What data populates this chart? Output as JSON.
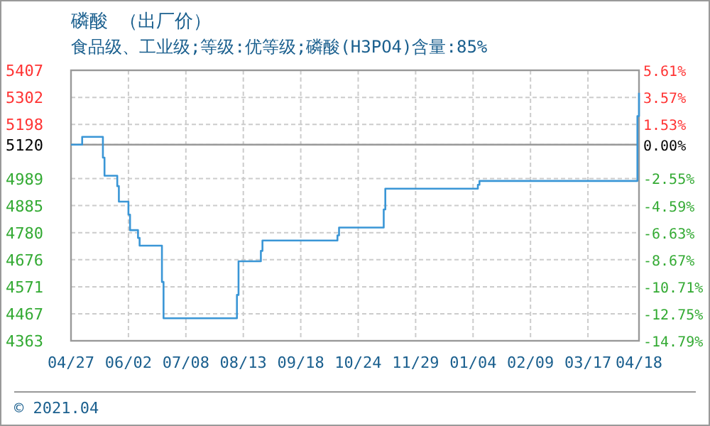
{
  "chart_data": {
    "type": "step",
    "title": "磷酸 （出厂价）",
    "subtitle": "食品级、工业级;等级:优等级;磷酸(H3PO4)含量:85%",
    "annotations": [
      "© 2021.04"
    ],
    "x": [
      "2020-04-27",
      "2020-05-04",
      "2020-05-17",
      "2020-05-18",
      "2020-05-26",
      "2020-05-27",
      "2020-06-02",
      "2020-06-03",
      "2020-06-08",
      "2020-06-09",
      "2020-06-23",
      "2020-06-24",
      "2020-08-09",
      "2020-08-10",
      "2020-08-24",
      "2020-08-25",
      "2020-10-11",
      "2020-10-12",
      "2020-11-09",
      "2020-11-10",
      "2021-01-07",
      "2021-01-08",
      "2021-04-16",
      "2021-04-17",
      "2021-04-18"
    ],
    "series": [
      {
        "color": "#3a96d6",
        "values": [
          5120,
          5150,
          5070,
          5000,
          4960,
          4900,
          4850,
          4790,
          4760,
          4730,
          4590,
          4450,
          4540,
          4670,
          4710,
          4750,
          4770,
          4800,
          4870,
          4950,
          4965,
          4980,
          4980,
          5230,
          5320
        ]
      }
    ],
    "xlim": [
      "2020-04-27",
      "2021-04-18"
    ],
    "xticks": [
      {
        "value": "2020-04-27",
        "label": "04/27"
      },
      {
        "value": "2020-06-02",
        "label": "06/02"
      },
      {
        "value": "2020-07-08",
        "label": "07/08"
      },
      {
        "value": "2020-08-13",
        "label": "08/13"
      },
      {
        "value": "2020-09-18",
        "label": "09/18"
      },
      {
        "value": "2020-10-24",
        "label": "10/24"
      },
      {
        "value": "2020-11-29",
        "label": "11/29"
      },
      {
        "value": "2021-01-04",
        "label": "01/04"
      },
      {
        "value": "2021-02-09",
        "label": "02/09"
      },
      {
        "value": "2021-03-17",
        "label": "03/17"
      },
      {
        "value": "2021-04-18",
        "label": "04/18"
      }
    ],
    "ylim": [
      4363,
      5407
    ],
    "yticks": [
      5407,
      5302,
      5198,
      5120,
      4989,
      4885,
      4780,
      4676,
      4571,
      4467,
      4363
    ],
    "y2lim": [
      -14.79,
      5.61
    ],
    "y2ticks": [
      {
        "value": 5.61,
        "label": "5.61%"
      },
      {
        "value": 3.57,
        "label": "3.57%"
      },
      {
        "value": 1.53,
        "label": "1.53%"
      },
      {
        "value": 0,
        "label": "0.00%"
      },
      {
        "value": -2.55,
        "label": "-2.55%"
      },
      {
        "value": -4.59,
        "label": "-4.59%"
      },
      {
        "value": -6.63,
        "label": "-6.63%"
      },
      {
        "value": -8.67,
        "label": "-8.67%"
      },
      {
        "value": -10.71,
        "label": "-10.71%"
      },
      {
        "value": -12.75,
        "label": "-12.75%"
      },
      {
        "value": -14.79,
        "label": "-14.79%"
      }
    ],
    "ref_lines": [
      {
        "axis": "y",
        "value": 5120,
        "color": "#999999"
      }
    ],
    "grid": true,
    "marker": "none",
    "line_style": "solid"
  }
}
